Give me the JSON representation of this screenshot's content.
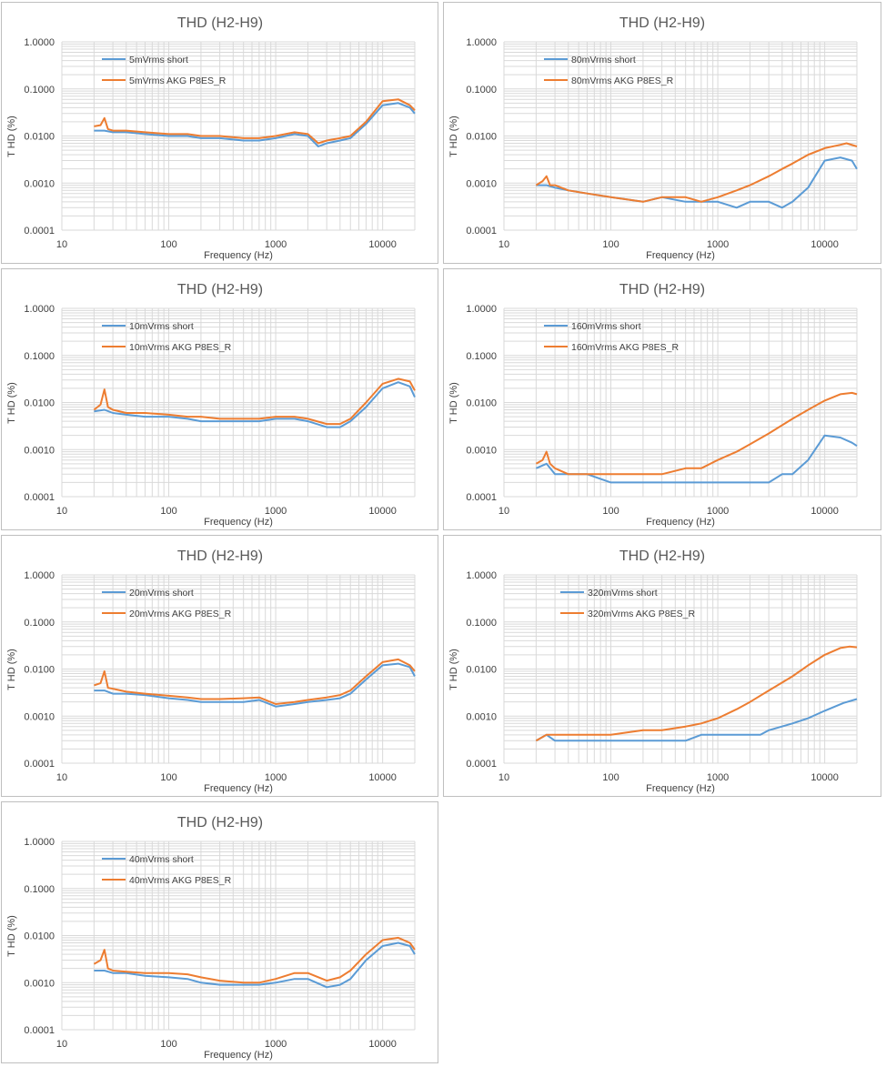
{
  "colors": {
    "short": "#5b9bd5",
    "akg": "#ed7d31",
    "grid": "#d9d9d9",
    "text": "#595959"
  },
  "chart_data": [
    {
      "type": "line",
      "title": "THD (H2-H9)",
      "xlabel": "Frequency (Hz)",
      "ylabel": "T HD (%)",
      "xscale": "log",
      "yscale": "log",
      "xlim": [
        10,
        20000
      ],
      "ylim": [
        0.0001,
        1
      ],
      "xticks": [
        "10",
        "100",
        "1000",
        "10000"
      ],
      "yticks": [
        "1.0000",
        "0.1000",
        "0.0100",
        "0.0010",
        "0.0001"
      ],
      "legend_position": "top-left",
      "grid": true,
      "series": [
        {
          "name": "5mVrms short",
          "color": "#5b9bd5",
          "x": [
            20,
            25,
            30,
            40,
            60,
            100,
            150,
            200,
            300,
            500,
            700,
            1000,
            1500,
            2000,
            2500,
            3000,
            4000,
            5000,
            7000,
            10000,
            14000,
            18000,
            20000
          ],
          "y": [
            0.013,
            0.013,
            0.012,
            0.012,
            0.011,
            0.01,
            0.01,
            0.009,
            0.009,
            0.008,
            0.008,
            0.009,
            0.011,
            0.01,
            0.006,
            0.007,
            0.008,
            0.009,
            0.018,
            0.045,
            0.05,
            0.04,
            0.03
          ]
        },
        {
          "name": "5mVrms AKG P8ES_R",
          "color": "#ed7d31",
          "x": [
            20,
            23,
            25,
            27,
            30,
            40,
            60,
            100,
            150,
            200,
            300,
            500,
            700,
            1000,
            1500,
            2000,
            2500,
            3000,
            4000,
            5000,
            7000,
            10000,
            14000,
            18000,
            20000
          ],
          "y": [
            0.016,
            0.017,
            0.024,
            0.014,
            0.013,
            0.013,
            0.012,
            0.011,
            0.011,
            0.01,
            0.01,
            0.009,
            0.009,
            0.01,
            0.012,
            0.011,
            0.007,
            0.008,
            0.009,
            0.01,
            0.02,
            0.055,
            0.06,
            0.045,
            0.035
          ]
        }
      ]
    },
    {
      "type": "line",
      "title": "THD (H2-H9)",
      "xlabel": "Frequency (Hz)",
      "ylabel": "T HD (%)",
      "xscale": "log",
      "yscale": "log",
      "xlim": [
        10,
        20000
      ],
      "ylim": [
        0.0001,
        1
      ],
      "xticks": [
        "10",
        "100",
        "1000",
        "10000"
      ],
      "yticks": [
        "1.0000",
        "0.1000",
        "0.0100",
        "0.0010",
        "0.0001"
      ],
      "legend_position": "top-left",
      "grid": true,
      "series": [
        {
          "name": "80mVrms short",
          "color": "#5b9bd5",
          "x": [
            20,
            25,
            30,
            40,
            60,
            100,
            200,
            300,
            500,
            700,
            1000,
            1500,
            2000,
            3000,
            4000,
            5000,
            7000,
            10000,
            14000,
            18000,
            20000
          ],
          "y": [
            0.0009,
            0.0009,
            0.0008,
            0.0007,
            0.0006,
            0.0005,
            0.0004,
            0.0005,
            0.0004,
            0.0004,
            0.0004,
            0.0003,
            0.0004,
            0.0004,
            0.0003,
            0.0004,
            0.0008,
            0.003,
            0.0035,
            0.003,
            0.002
          ]
        },
        {
          "name": "80mVrms AKG P8ES_R",
          "color": "#ed7d31",
          "x": [
            20,
            23,
            25,
            27,
            30,
            40,
            60,
            100,
            200,
            300,
            500,
            700,
            1000,
            1500,
            2000,
            3000,
            4000,
            5000,
            7000,
            10000,
            14000,
            16000,
            20000
          ],
          "y": [
            0.0009,
            0.0011,
            0.0014,
            0.0009,
            0.0009,
            0.0007,
            0.0006,
            0.0005,
            0.0004,
            0.0005,
            0.0005,
            0.0004,
            0.0005,
            0.0007,
            0.0009,
            0.0014,
            0.002,
            0.0026,
            0.004,
            0.0055,
            0.0065,
            0.007,
            0.006
          ]
        }
      ]
    },
    {
      "type": "line",
      "title": "THD (H2-H9)",
      "xlabel": "Frequency (Hz)",
      "ylabel": "T HD (%)",
      "xscale": "log",
      "yscale": "log",
      "xlim": [
        10,
        20000
      ],
      "ylim": [
        0.0001,
        1
      ],
      "xticks": [
        "10",
        "100",
        "1000",
        "10000"
      ],
      "yticks": [
        "1.0000",
        "0.1000",
        "0.0100",
        "0.0010",
        "0.0001"
      ],
      "legend_position": "top-left",
      "grid": true,
      "series": [
        {
          "name": "10mVrms short",
          "color": "#5b9bd5",
          "x": [
            20,
            25,
            30,
            40,
            60,
            100,
            150,
            200,
            300,
            500,
            700,
            1000,
            1500,
            2000,
            3000,
            4000,
            5000,
            7000,
            10000,
            14000,
            18000,
            20000
          ],
          "y": [
            0.0065,
            0.007,
            0.006,
            0.0055,
            0.005,
            0.005,
            0.0045,
            0.004,
            0.004,
            0.004,
            0.004,
            0.0045,
            0.0045,
            0.004,
            0.003,
            0.003,
            0.004,
            0.008,
            0.02,
            0.027,
            0.022,
            0.013
          ]
        },
        {
          "name": "10mVrms AKG P8ES_R",
          "color": "#ed7d31",
          "x": [
            20,
            23,
            25,
            27,
            30,
            40,
            60,
            100,
            150,
            200,
            300,
            500,
            700,
            1000,
            1500,
            2000,
            3000,
            4000,
            5000,
            7000,
            10000,
            14000,
            18000,
            20000
          ],
          "y": [
            0.007,
            0.009,
            0.019,
            0.008,
            0.007,
            0.006,
            0.006,
            0.0055,
            0.005,
            0.005,
            0.0045,
            0.0045,
            0.0045,
            0.005,
            0.005,
            0.0045,
            0.0035,
            0.0035,
            0.0045,
            0.01,
            0.025,
            0.032,
            0.028,
            0.018
          ]
        }
      ]
    },
    {
      "type": "line",
      "title": "THD (H2-H9)",
      "xlabel": "Frequency (Hz)",
      "ylabel": "T HD (%)",
      "xscale": "log",
      "yscale": "log",
      "xlim": [
        10,
        20000
      ],
      "ylim": [
        0.0001,
        1
      ],
      "xticks": [
        "10",
        "100",
        "1000",
        "10000"
      ],
      "yticks": [
        "1.0000",
        "0.1000",
        "0.0100",
        "0.0010",
        "0.0001"
      ],
      "legend_position": "top-left",
      "grid": true,
      "series": [
        {
          "name": "160mVrms short",
          "color": "#5b9bd5",
          "x": [
            20,
            25,
            30,
            40,
            60,
            100,
            200,
            500,
            1000,
            2000,
            3000,
            4000,
            5000,
            7000,
            10000,
            14000,
            18000,
            20000
          ],
          "y": [
            0.0004,
            0.0005,
            0.0003,
            0.0003,
            0.0003,
            0.0002,
            0.0002,
            0.0002,
            0.0002,
            0.0002,
            0.0002,
            0.0003,
            0.0003,
            0.0006,
            0.002,
            0.0018,
            0.0014,
            0.0012
          ]
        },
        {
          "name": "160mVrms AKG P8ES_R",
          "color": "#ed7d31",
          "x": [
            20,
            23,
            25,
            27,
            30,
            40,
            60,
            100,
            200,
            300,
            500,
            700,
            1000,
            1500,
            2000,
            3000,
            5000,
            7000,
            10000,
            14000,
            18000,
            20000
          ],
          "y": [
            0.0005,
            0.0006,
            0.0009,
            0.0005,
            0.0004,
            0.0003,
            0.0003,
            0.0003,
            0.0003,
            0.0003,
            0.0004,
            0.0004,
            0.0006,
            0.0009,
            0.0013,
            0.0022,
            0.0045,
            0.007,
            0.011,
            0.015,
            0.016,
            0.015
          ]
        }
      ]
    },
    {
      "type": "line",
      "title": "THD (H2-H9)",
      "xlabel": "Frequency (Hz)",
      "ylabel": "T HD (%)",
      "xscale": "log",
      "yscale": "log",
      "xlim": [
        10,
        20000
      ],
      "ylim": [
        0.0001,
        1
      ],
      "xticks": [
        "10",
        "100",
        "1000",
        "10000"
      ],
      "yticks": [
        "1.0000",
        "0.1000",
        "0.0100",
        "0.0010",
        "0.0001"
      ],
      "legend_position": "top-left",
      "grid": true,
      "series": [
        {
          "name": "20mVrms short",
          "color": "#5b9bd5",
          "x": [
            20,
            25,
            30,
            40,
            60,
            100,
            150,
            200,
            300,
            500,
            700,
            1000,
            1500,
            2000,
            3000,
            4000,
            5000,
            7000,
            10000,
            14000,
            18000,
            20000
          ],
          "y": [
            0.0035,
            0.0035,
            0.003,
            0.003,
            0.0028,
            0.0024,
            0.0022,
            0.002,
            0.002,
            0.002,
            0.0022,
            0.0016,
            0.0018,
            0.002,
            0.0022,
            0.0024,
            0.003,
            0.006,
            0.012,
            0.013,
            0.011,
            0.007
          ]
        },
        {
          "name": "20mVrms AKG P8ES_R",
          "color": "#ed7d31",
          "x": [
            20,
            23,
            25,
            27,
            30,
            40,
            60,
            100,
            150,
            200,
            300,
            500,
            700,
            1000,
            1500,
            2000,
            3000,
            4000,
            5000,
            7000,
            10000,
            14000,
            18000,
            20000
          ],
          "y": [
            0.0045,
            0.005,
            0.009,
            0.004,
            0.0038,
            0.0033,
            0.003,
            0.0027,
            0.0025,
            0.0023,
            0.0023,
            0.0024,
            0.0025,
            0.0018,
            0.002,
            0.0022,
            0.0025,
            0.0028,
            0.0035,
            0.007,
            0.014,
            0.016,
            0.012,
            0.009
          ]
        }
      ]
    },
    {
      "type": "line",
      "title": "THD (H2-H9)",
      "xlabel": "Frequency (Hz)",
      "ylabel": "T HD (%)",
      "xscale": "log",
      "yscale": "log",
      "xlim": [
        10,
        20000
      ],
      "ylim": [
        0.0001,
        1
      ],
      "xticks": [
        "10",
        "100",
        "1000",
        "10000"
      ],
      "yticks": [
        "1.0000",
        "0.1000",
        "0.0100",
        "0.0010",
        "0.0001"
      ],
      "legend_position": "top-left",
      "grid": true,
      "series": [
        {
          "name": "320mVrms short",
          "color": "#5b9bd5",
          "x": [
            20,
            25,
            30,
            40,
            60,
            100,
            200,
            500,
            700,
            1000,
            2000,
            2500,
            3000,
            5000,
            7000,
            10000,
            15000,
            20000
          ],
          "y": [
            0.0003,
            0.0004,
            0.0003,
            0.0003,
            0.0003,
            0.0003,
            0.0003,
            0.0003,
            0.0004,
            0.0004,
            0.0004,
            0.0004,
            0.0005,
            0.0007,
            0.0009,
            0.0013,
            0.0019,
            0.0023
          ]
        },
        {
          "name": "320mVrms AKG P8ES_R",
          "color": "#ed7d31",
          "x": [
            20,
            25,
            30,
            40,
            60,
            100,
            200,
            300,
            500,
            700,
            1000,
            1500,
            2000,
            3000,
            5000,
            7000,
            10000,
            14000,
            17000,
            20000
          ],
          "y": [
            0.0003,
            0.0004,
            0.0004,
            0.0004,
            0.0004,
            0.0004,
            0.0005,
            0.0005,
            0.0006,
            0.0007,
            0.0009,
            0.0014,
            0.002,
            0.0035,
            0.007,
            0.012,
            0.02,
            0.028,
            0.03,
            0.029
          ]
        }
      ]
    },
    {
      "type": "line",
      "title": "THD (H2-H9)",
      "xlabel": "Frequency (Hz)",
      "ylabel": "T HD (%)",
      "xscale": "log",
      "yscale": "log",
      "xlim": [
        10,
        20000
      ],
      "ylim": [
        0.0001,
        1
      ],
      "xticks": [
        "10",
        "100",
        "1000",
        "10000"
      ],
      "yticks": [
        "1.0000",
        "0.1000",
        "0.0100",
        "0.0010",
        "0.0001"
      ],
      "legend_position": "top-left",
      "grid": true,
      "series": [
        {
          "name": "40mVrms short",
          "color": "#5b9bd5",
          "x": [
            20,
            25,
            30,
            40,
            60,
            100,
            150,
            200,
            300,
            500,
            700,
            1000,
            1500,
            2000,
            3000,
            4000,
            5000,
            7000,
            10000,
            14000,
            18000,
            20000
          ],
          "y": [
            0.0018,
            0.0018,
            0.0016,
            0.0016,
            0.0014,
            0.0013,
            0.0012,
            0.001,
            0.0009,
            0.0009,
            0.0009,
            0.001,
            0.0012,
            0.0012,
            0.0008,
            0.0009,
            0.0012,
            0.003,
            0.006,
            0.007,
            0.006,
            0.004
          ]
        },
        {
          "name": "40mVrms AKG P8ES_R",
          "color": "#ed7d31",
          "x": [
            20,
            23,
            25,
            27,
            30,
            40,
            60,
            100,
            150,
            200,
            300,
            500,
            700,
            1000,
            1500,
            2000,
            3000,
            4000,
            5000,
            7000,
            10000,
            14000,
            18000,
            20000
          ],
          "y": [
            0.0025,
            0.003,
            0.005,
            0.002,
            0.0018,
            0.0017,
            0.0016,
            0.0016,
            0.0015,
            0.0013,
            0.0011,
            0.001,
            0.001,
            0.0012,
            0.0016,
            0.0016,
            0.0011,
            0.0013,
            0.0018,
            0.004,
            0.008,
            0.009,
            0.007,
            0.005
          ]
        }
      ]
    }
  ]
}
